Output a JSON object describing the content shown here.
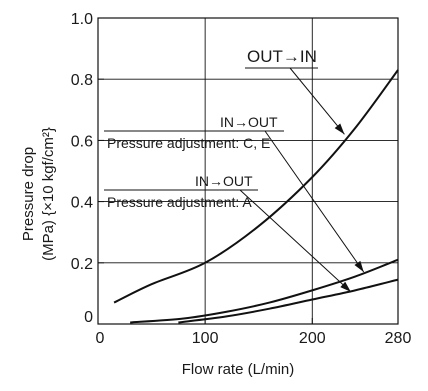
{
  "chart_data": {
    "type": "line",
    "title": "",
    "xlabel": "Flow rate (L/min)",
    "ylabel_line1": "Pressure drop",
    "ylabel_line2": "(MPa) {×10 kgf/cm²}",
    "xlim": [
      0,
      280
    ],
    "ylim": [
      0,
      1.0
    ],
    "xticks": [
      {
        "value": 0,
        "label": "0"
      },
      {
        "value": 100,
        "label": "100"
      },
      {
        "value": 200,
        "label": "200"
      },
      {
        "value": 280,
        "label": "280"
      }
    ],
    "yticks": [
      {
        "value": 0,
        "label": "0"
      },
      {
        "value": 0.2,
        "label": "0.2"
      },
      {
        "value": 0.4,
        "label": "0.4"
      },
      {
        "value": 0.6,
        "label": "0.6"
      },
      {
        "value": 0.8,
        "label": "0.8"
      },
      {
        "value": 1.0,
        "label": "1.0"
      }
    ],
    "grid": true,
    "series": [
      {
        "name": "OUT→IN",
        "x": [
          15,
          50,
          100,
          150,
          200,
          240,
          280
        ],
        "y": [
          0.07,
          0.13,
          0.2,
          0.32,
          0.48,
          0.64,
          0.83
        ]
      },
      {
        "name": "IN→OUT Pressure adjustment: C, E",
        "x": [
          30,
          80,
          120,
          160,
          200,
          240,
          280
        ],
        "y": [
          0.005,
          0.018,
          0.04,
          0.07,
          0.11,
          0.155,
          0.21
        ]
      },
      {
        "name": "IN→OUT Pressure adjustment: A",
        "x": [
          75,
          120,
          160,
          200,
          240,
          280
        ],
        "y": [
          0.005,
          0.025,
          0.05,
          0.08,
          0.11,
          0.145
        ]
      }
    ],
    "annotations": [
      {
        "text": "OUT→IN",
        "target": {
          "x": 230,
          "y": 0.62
        }
      },
      {
        "text": "IN→OUT",
        "target": {
          "x": 248,
          "y": 0.17
        }
      },
      {
        "text": "Pressure adjustment: C, E",
        "target": {
          "x": 248,
          "y": 0.17
        }
      },
      {
        "text": "IN→OUT",
        "target": {
          "x": 236,
          "y": 0.105
        }
      },
      {
        "text": "Pressure adjustment: A",
        "target": {
          "x": 236,
          "y": 0.105
        }
      }
    ]
  }
}
